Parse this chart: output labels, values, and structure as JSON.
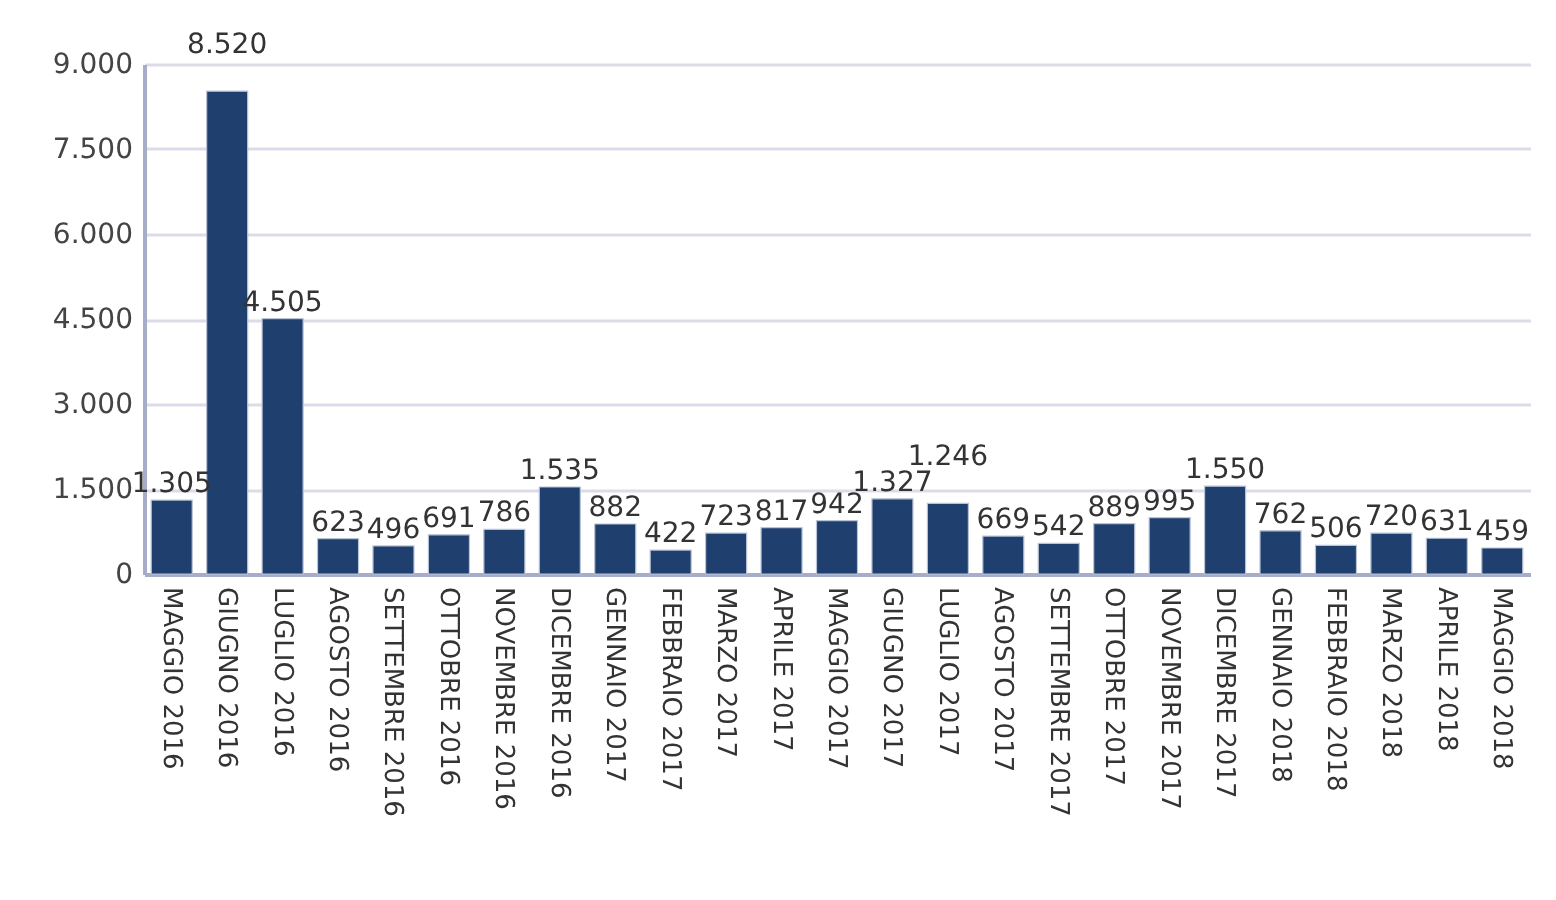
{
  "chart_data": {
    "type": "bar",
    "categories": [
      "MAGGIO 2016",
      "GIUGNO 2016",
      "LUGLIO 2016",
      "AGOSTO 2016",
      "SETTEMBRE 2016",
      "OTTOBRE 2016",
      "NOVEMBRE 2016",
      "DICEMBRE 2016",
      "GENNAIO 2017",
      "FEBBRAIO 2017",
      "MARZO 2017",
      "APRILE 2017",
      "MAGGIO 2017",
      "GIUGNO 2017",
      "LUGLIO 2017",
      "AGOSTO 2017",
      "SETTEMBRE 2017",
      "OTTOBRE 2017",
      "NOVEMBRE 2017",
      "DICEMBRE 2017",
      "GENNAIO 2018",
      "FEBBRAIO 2018",
      "MARZO 2018",
      "APRILE 2018",
      "MAGGIO 2018"
    ],
    "values": [
      1305,
      8520,
      4505,
      623,
      496,
      691,
      786,
      1535,
      882,
      422,
      723,
      817,
      942,
      1327,
      1246,
      669,
      542,
      889,
      995,
      1550,
      762,
      506,
      720,
      631,
      459
    ],
    "value_labels": [
      "1.305",
      "8.520",
      "4.505",
      "623",
      "496",
      "691",
      "786",
      "1.535",
      "882",
      "422",
      "723",
      "817",
      "942",
      "1.327",
      "1.246",
      "669",
      "542",
      "889",
      "995",
      "1.550",
      "762",
      "506",
      "720",
      "631",
      "459"
    ],
    "color": "#1f3f6e",
    "ylim": [
      0,
      9000
    ],
    "yticks": [
      {
        "value": 0,
        "label": "0"
      },
      {
        "value": 1500,
        "label": "1.500"
      },
      {
        "value": 3000,
        "label": "3.000"
      },
      {
        "value": 4500,
        "label": "4.500"
      },
      {
        "value": 6000,
        "label": "6.000"
      },
      {
        "value": 7500,
        "label": "7.500"
      },
      {
        "value": 9000,
        "label": "9.000"
      }
    ],
    "grid": "y"
  }
}
